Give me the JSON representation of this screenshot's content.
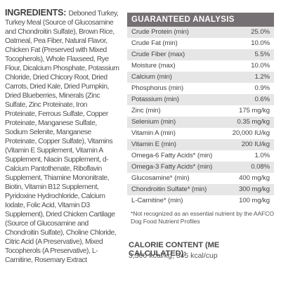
{
  "ingredients": {
    "heading": "INGREDIENTS:",
    "text": "Deboned Turkey, Turkey Meal (Source of Glucosamine and Chondroitin Sulfate), Brown Rice, Oatmeal, Pea Fiber, Natural Flavor, Chicken Fat (Preserved with Mixed Tocopherols), Whole Flaxseed, Rye Flour, Dicalcium Phosphate, Potassium Chloride, Dried Chicory Root, Dried Carrots, Dried Kale, Dried Pumpkin, Dried Blueberries, Minerals (Zinc Sulfate, Zinc Proteinate, Iron Proteinate, Ferrous Sulfate, Copper Proteinate, Manganese Sulfate, Sodium Selenite, Manganese Proteinate, Copper Sulfate), Vitamins (Vitamin E Supplement, Vitamin A Supplement, Niacin Supplement, d-Calcium Pantothenate, Riboflavin Supplement, Thiamine Mononitrate, Biotin, Vitamin B12 Supplement, Pyridoxine Hydrochloride, Calcium Iodate, Folic Acid, Vitamin D3 Supplement), Dried Chicken Cartilage (Source of Glucosamine and Chondroitin Sulfate), Choline Chloride, Citric Acid (A Preservative), Mixed Tocopherols (A Preservative), L-Carnitine, Rosemary Extract"
  },
  "analysis": {
    "title": "GUARANTEED ANALYSIS",
    "header_color": "#757073",
    "rows": [
      {
        "name": "Crude Protein (min)",
        "value": "25.0%"
      },
      {
        "name": "Crude Fat (min)",
        "value": "10.0%"
      },
      {
        "name": "Crude Fiber (max)",
        "value": "5.5%"
      },
      {
        "name": "Moisture (max)",
        "value": "10.0%"
      },
      {
        "name": "Calcium (min)",
        "value": "1.2%"
      },
      {
        "name": "Phosphorus (min)",
        "value": "0.9%"
      },
      {
        "name": "Potassium (min)",
        "value": "0.6%"
      },
      {
        "name": "Zinc (min)",
        "value": "175 mg/kg"
      },
      {
        "name": "Selenium (min)",
        "value": "0.35 mg/kg"
      },
      {
        "name": "Vitamin A (min)",
        "value": "20,000 IU/kg"
      },
      {
        "name": "Vitamin E (min)",
        "value": "200 IU/kg"
      },
      {
        "name": "Omega-6 Fatty Acids* (min)",
        "value": "1.0%"
      },
      {
        "name": "Omega-3 Fatty Acids* (min)",
        "value": "0.08%"
      },
      {
        "name": "Glucosamine* (min)",
        "value": "400 mg/kg"
      },
      {
        "name": "Chondroitin Sulfate* (min)",
        "value": "300 mg/kg"
      },
      {
        "name": "L-Carnitine* (min)",
        "value": "100 mg/kg"
      }
    ],
    "footnote": "*Not recognized as an essential nutrient by the AAFCO Dog Food Nutrient Profiles"
  },
  "calorie": {
    "title": "CALORIE CONTENT (ME CALCULATED):",
    "value": "3,300 kcal/kg, 345 kcal/cup"
  }
}
